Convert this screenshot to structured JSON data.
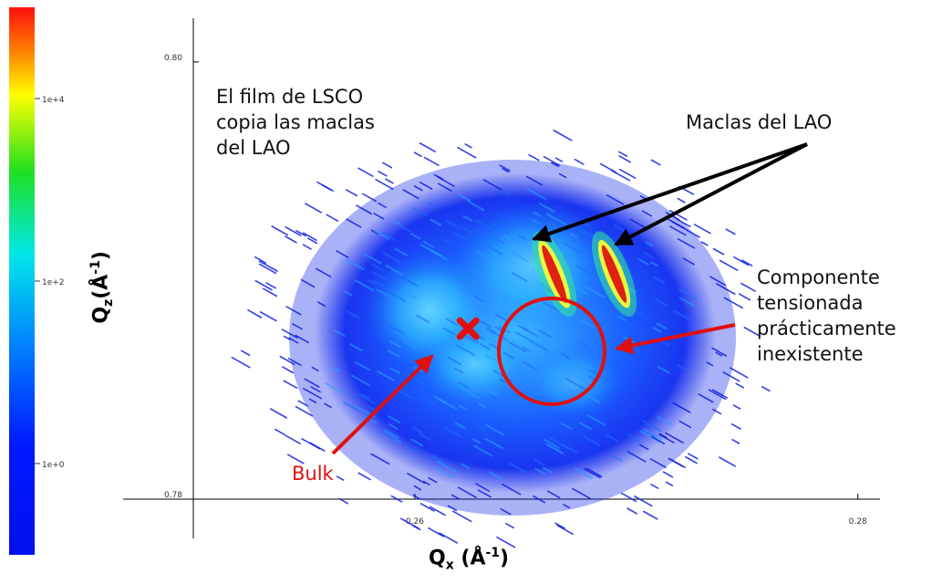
{
  "chart_data": {
    "type": "heatmap",
    "xlabel": {
      "base": "Q",
      "sub": "x",
      "unit_open": " (Å",
      "sup": "-1",
      "unit_close": ")"
    },
    "ylabel": {
      "base": "Q",
      "sub": "z",
      "unit_open": "(Å",
      "sup": "-1",
      "unit_close": ")"
    },
    "xlim": [
      0.25,
      0.281
    ],
    "ylim": [
      0.78,
      0.802
    ],
    "x_ticks": [
      {
        "value": 0.26,
        "label": "0.26"
      },
      {
        "value": 0.28,
        "label": "0.28"
      }
    ],
    "y_ticks": [
      {
        "value": 0.8,
        "label": "0.80"
      },
      {
        "value": 0.78,
        "label": "0.78"
      }
    ],
    "colorbar": {
      "scale": "log",
      "ticks": [
        {
          "value": 10000,
          "label": "1e+4"
        },
        {
          "value": 100,
          "label": "1e+2"
        },
        {
          "value": 1,
          "label": "1e+0"
        }
      ]
    },
    "grid": false,
    "features": [
      {
        "kind": "twin-peak",
        "x": 0.2663,
        "y": 0.7903
      },
      {
        "kind": "twin-peak",
        "x": 0.269,
        "y": 0.7903
      },
      {
        "kind": "bulk-marker",
        "x": 0.2624,
        "y": 0.7878
      }
    ]
  },
  "annotations": {
    "film_note": [
      "El film de LSCO",
      "copia las maclas",
      "del LAO"
    ],
    "twins": "Maclas del LAO",
    "strained": [
      "Componente",
      "tensionada",
      "prácticamente",
      "inexistente"
    ],
    "bulk": "Bulk"
  },
  "colors": {
    "annotation_red": "#e01010",
    "arrow_black": "#000000",
    "peak": "#e02010"
  }
}
